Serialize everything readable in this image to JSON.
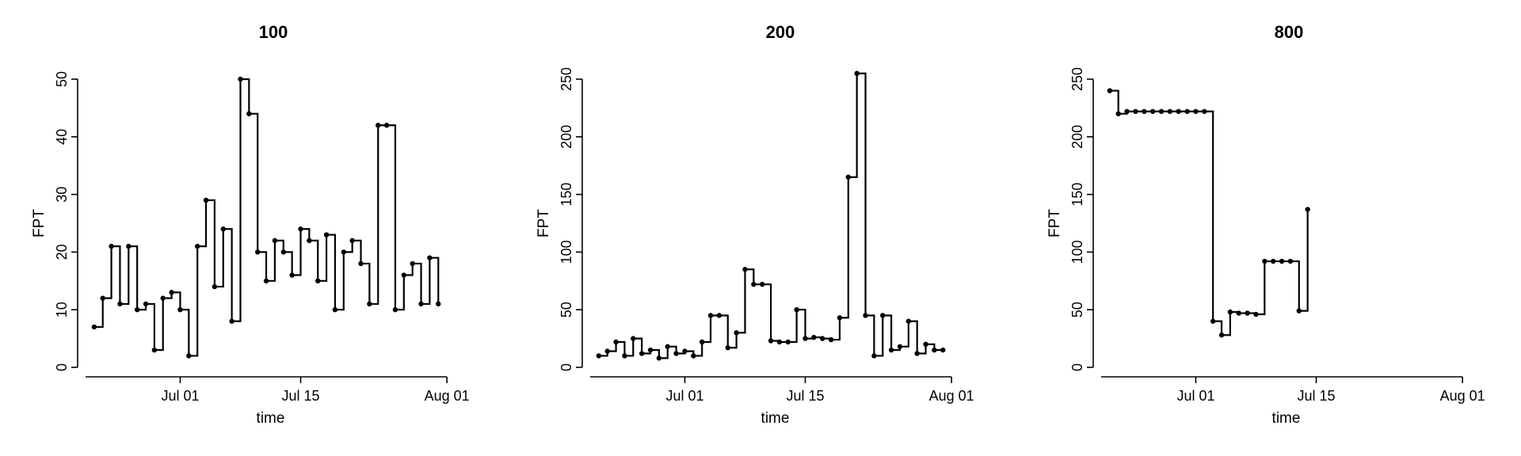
{
  "chart_data": [
    {
      "type": "line",
      "title": "100",
      "xlabel": "time",
      "ylabel": "FPT",
      "x_ticks": [
        "Jul 01",
        "Jul 15",
        "Aug 01"
      ],
      "y_ticks": [
        "0",
        "10",
        "20",
        "30",
        "40",
        "50"
      ],
      "xlim": [
        "2021-06-20",
        "2021-08-02"
      ],
      "ylim": [
        0,
        50
      ],
      "x_tick_dates": [
        "2021-07-01",
        "2021-07-15",
        "2021-08-01"
      ],
      "y_tick_values": [
        0,
        10,
        20,
        30,
        40,
        50
      ],
      "series": [
        {
          "x": [
            "2021-06-21",
            "2021-06-22",
            "2021-06-23",
            "2021-06-24",
            "2021-06-25",
            "2021-06-26",
            "2021-06-27",
            "2021-06-28",
            "2021-06-29",
            "2021-06-30",
            "2021-07-01",
            "2021-07-02",
            "2021-07-03",
            "2021-07-04",
            "2021-07-05",
            "2021-07-06",
            "2021-07-07",
            "2021-07-08",
            "2021-07-09",
            "2021-07-10",
            "2021-07-11",
            "2021-07-12",
            "2021-07-13",
            "2021-07-14",
            "2021-07-15",
            "2021-07-16",
            "2021-07-17",
            "2021-07-18",
            "2021-07-19",
            "2021-07-20",
            "2021-07-21",
            "2021-07-22",
            "2021-07-23",
            "2021-07-24",
            "2021-07-25",
            "2021-07-26",
            "2021-07-27",
            "2021-07-28",
            "2021-07-29",
            "2021-07-30",
            "2021-07-31"
          ],
          "y": [
            7,
            12,
            21,
            11,
            21,
            10,
            11,
            3,
            12,
            13,
            10,
            2,
            21,
            29,
            14,
            24,
            8,
            50,
            44,
            20,
            15,
            22,
            20,
            16,
            24,
            22,
            15,
            23,
            10,
            20,
            22,
            18,
            11,
            42,
            42,
            10,
            16,
            18,
            11,
            19,
            11
          ]
        }
      ]
    },
    {
      "type": "line",
      "title": "200",
      "xlabel": "time",
      "ylabel": "FPT",
      "x_ticks": [
        "Jul 01",
        "Jul 15",
        "Aug 01"
      ],
      "y_ticks": [
        "0",
        "50",
        "100",
        "150",
        "200",
        "250"
      ],
      "xlim": [
        "2021-06-20",
        "2021-08-02"
      ],
      "ylim": [
        0,
        250
      ],
      "x_tick_dates": [
        "2021-07-01",
        "2021-07-15",
        "2021-08-01"
      ],
      "y_tick_values": [
        0,
        50,
        100,
        150,
        200,
        250
      ],
      "series": [
        {
          "x": [
            "2021-06-21",
            "2021-06-22",
            "2021-06-23",
            "2021-06-24",
            "2021-06-25",
            "2021-06-26",
            "2021-06-27",
            "2021-06-28",
            "2021-06-29",
            "2021-06-30",
            "2021-07-01",
            "2021-07-02",
            "2021-07-03",
            "2021-07-04",
            "2021-07-05",
            "2021-07-06",
            "2021-07-07",
            "2021-07-08",
            "2021-07-09",
            "2021-07-10",
            "2021-07-11",
            "2021-07-12",
            "2021-07-13",
            "2021-07-14",
            "2021-07-15",
            "2021-07-16",
            "2021-07-17",
            "2021-07-18",
            "2021-07-19",
            "2021-07-20",
            "2021-07-21",
            "2021-07-22",
            "2021-07-23",
            "2021-07-24",
            "2021-07-25",
            "2021-07-26",
            "2021-07-27",
            "2021-07-28",
            "2021-07-29",
            "2021-07-30",
            "2021-07-31"
          ],
          "y": [
            10,
            14,
            22,
            10,
            25,
            12,
            15,
            8,
            18,
            12,
            14,
            10,
            22,
            45,
            45,
            17,
            30,
            85,
            72,
            72,
            23,
            22,
            22,
            50,
            25,
            26,
            25,
            24,
            43,
            165,
            255,
            45,
            10,
            45,
            15,
            18,
            40,
            12,
            20,
            15,
            15
          ]
        }
      ]
    },
    {
      "type": "line",
      "title": "800",
      "xlabel": "time",
      "ylabel": "FPT",
      "x_ticks": [
        "Jul 01",
        "Jul 15",
        "Aug 01"
      ],
      "y_ticks": [
        "0",
        "50",
        "100",
        "150",
        "200",
        "250"
      ],
      "xlim": [
        "2021-06-20",
        "2021-08-02"
      ],
      "ylim": [
        0,
        250
      ],
      "x_tick_dates": [
        "2021-07-01",
        "2021-07-15",
        "2021-08-01"
      ],
      "y_tick_values": [
        0,
        50,
        100,
        150,
        200,
        250
      ],
      "series": [
        {
          "x": [
            "2021-06-21",
            "2021-06-22",
            "2021-06-23",
            "2021-06-24",
            "2021-06-25",
            "2021-06-26",
            "2021-06-27",
            "2021-06-28",
            "2021-06-29",
            "2021-06-30",
            "2021-07-01",
            "2021-07-02",
            "2021-07-03",
            "2021-07-04",
            "2021-07-05",
            "2021-07-06",
            "2021-07-07",
            "2021-07-08",
            "2021-07-09",
            "2021-07-10",
            "2021-07-11",
            "2021-07-12",
            "2021-07-13",
            "2021-07-14"
          ],
          "y": [
            240,
            220,
            222,
            222,
            222,
            222,
            222,
            222,
            222,
            222,
            222,
            222,
            40,
            28,
            48,
            47,
            47,
            46,
            92,
            92,
            92,
            92,
            49,
            137
          ]
        }
      ]
    }
  ]
}
